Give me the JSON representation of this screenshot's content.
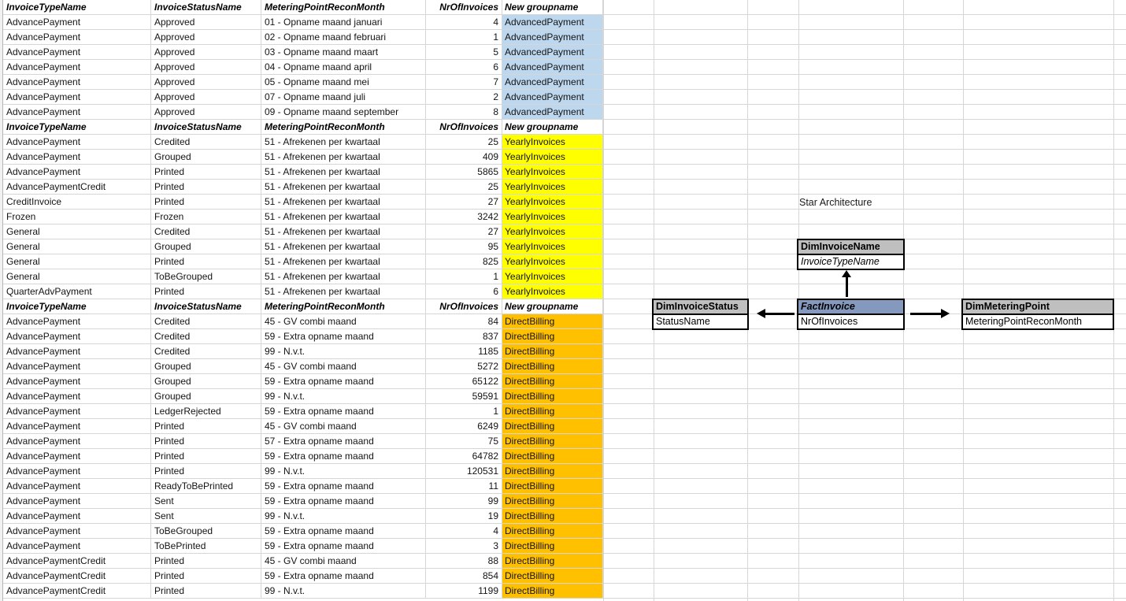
{
  "spreadsheet": {
    "headers": [
      "InvoiceTypeName",
      "InvoiceStatusName",
      "MeteringPointReconMonth",
      "NrOfInvoices",
      "New groupname"
    ],
    "gridline_color": "#d6d6d6",
    "sections": [
      {
        "group": "AdvancedPayment",
        "highlight": "#BDD7EE",
        "rows": [
          [
            "AdvancePayment",
            "Approved",
            "01 - Opname maand januari",
            "4",
            "AdvancedPayment"
          ],
          [
            "AdvancePayment",
            "Approved",
            "02 - Opname maand februari",
            "1",
            "AdvancedPayment"
          ],
          [
            "AdvancePayment",
            "Approved",
            "03 - Opname maand maart",
            "5",
            "AdvancedPayment"
          ],
          [
            "AdvancePayment",
            "Approved",
            "04 - Opname maand april",
            "6",
            "AdvancedPayment"
          ],
          [
            "AdvancePayment",
            "Approved",
            "05 - Opname maand mei",
            "7",
            "AdvancedPayment"
          ],
          [
            "AdvancePayment",
            "Approved",
            "07 - Opname maand juli",
            "2",
            "AdvancedPayment"
          ],
          [
            "AdvancePayment",
            "Approved",
            "09 - Opname maand september",
            "8",
            "AdvancedPayment"
          ]
        ]
      },
      {
        "group": "YearlyInvoices",
        "highlight": "#FFFF00",
        "rows": [
          [
            "AdvancePayment",
            "Credited",
            "51 - Afrekenen per kwartaal",
            "25",
            "YearlyInvoices"
          ],
          [
            "AdvancePayment",
            "Grouped",
            "51 - Afrekenen per kwartaal",
            "409",
            "YearlyInvoices"
          ],
          [
            "AdvancePayment",
            "Printed",
            "51 - Afrekenen per kwartaal",
            "5865",
            "YearlyInvoices"
          ],
          [
            "AdvancePaymentCredit",
            "Printed",
            "51 - Afrekenen per kwartaal",
            "25",
            "YearlyInvoices"
          ],
          [
            "CreditInvoice",
            "Printed",
            "51 - Afrekenen per kwartaal",
            "27",
            "YearlyInvoices"
          ],
          [
            "Frozen",
            "Frozen",
            "51 - Afrekenen per kwartaal",
            "3242",
            "YearlyInvoices"
          ],
          [
            "General",
            "Credited",
            "51 - Afrekenen per kwartaal",
            "27",
            "YearlyInvoices"
          ],
          [
            "General",
            "Grouped",
            "51 - Afrekenen per kwartaal",
            "95",
            "YearlyInvoices"
          ],
          [
            "General",
            "Printed",
            "51 - Afrekenen per kwartaal",
            "825",
            "YearlyInvoices"
          ],
          [
            "General",
            "ToBeGrouped",
            "51 - Afrekenen per kwartaal",
            "1",
            "YearlyInvoices"
          ],
          [
            "QuarterAdvPayment",
            "Printed",
            "51 - Afrekenen per kwartaal",
            "6",
            "YearlyInvoices"
          ]
        ]
      },
      {
        "group": "DirectBilling",
        "highlight": "#FFC000",
        "rows": [
          [
            "AdvancePayment",
            "Credited",
            "45 - GV combi maand",
            "84",
            "DirectBilling"
          ],
          [
            "AdvancePayment",
            "Credited",
            "59 - Extra opname maand",
            "837",
            "DirectBilling"
          ],
          [
            "AdvancePayment",
            "Credited",
            "99 - N.v.t.",
            "1185",
            "DirectBilling"
          ],
          [
            "AdvancePayment",
            "Grouped",
            "45 - GV combi maand",
            "5272",
            "DirectBilling"
          ],
          [
            "AdvancePayment",
            "Grouped",
            "59 - Extra opname maand",
            "65122",
            "DirectBilling"
          ],
          [
            "AdvancePayment",
            "Grouped",
            "99 - N.v.t.",
            "59591",
            "DirectBilling"
          ],
          [
            "AdvancePayment",
            "LedgerRejected",
            "59 - Extra opname maand",
            "1",
            "DirectBilling"
          ],
          [
            "AdvancePayment",
            "Printed",
            "45 - GV combi maand",
            "6249",
            "DirectBilling"
          ],
          [
            "AdvancePayment",
            "Printed",
            "57 - Extra opname maand",
            "75",
            "DirectBilling"
          ],
          [
            "AdvancePayment",
            "Printed",
            "59 - Extra opname maand",
            "64782",
            "DirectBilling"
          ],
          [
            "AdvancePayment",
            "Printed",
            "99 - N.v.t.",
            "120531",
            "DirectBilling"
          ],
          [
            "AdvancePayment",
            "ReadyToBePrinted",
            "59 - Extra opname maand",
            "11",
            "DirectBilling"
          ],
          [
            "AdvancePayment",
            "Sent",
            "59 - Extra opname maand",
            "99",
            "DirectBilling"
          ],
          [
            "AdvancePayment",
            "Sent",
            "99 - N.v.t.",
            "19",
            "DirectBilling"
          ],
          [
            "AdvancePayment",
            "ToBeGrouped",
            "59 - Extra opname maand",
            "4",
            "DirectBilling"
          ],
          [
            "AdvancePayment",
            "ToBePrinted",
            "59 - Extra opname maand",
            "3",
            "DirectBilling"
          ],
          [
            "AdvancePaymentCredit",
            "Printed",
            "45 - GV combi maand",
            "88",
            "DirectBilling"
          ],
          [
            "AdvancePaymentCredit",
            "Printed",
            "59 - Extra opname maand",
            "854",
            "DirectBilling"
          ],
          [
            "AdvancePaymentCredit",
            "Printed",
            "99 - N.v.t.",
            "1199",
            "DirectBilling"
          ]
        ]
      }
    ]
  },
  "diagram": {
    "title": "Star Architecture",
    "dim_header_color": "#BFBFBF",
    "fact_header_color": "#8499BD",
    "boxes": {
      "dim_invoice_name": {
        "title": "DimInvoiceName",
        "field": "InvoiceTypeName"
      },
      "dim_invoice_status": {
        "title": "DimInvoiceStatus",
        "field": "StatusName"
      },
      "fact_invoice": {
        "title": "FactInvoice",
        "field": "NrOfInvoices"
      },
      "dim_metering_point": {
        "title": "DimMeteringPoint",
        "field": "MeteringPointReconMonth"
      }
    }
  }
}
